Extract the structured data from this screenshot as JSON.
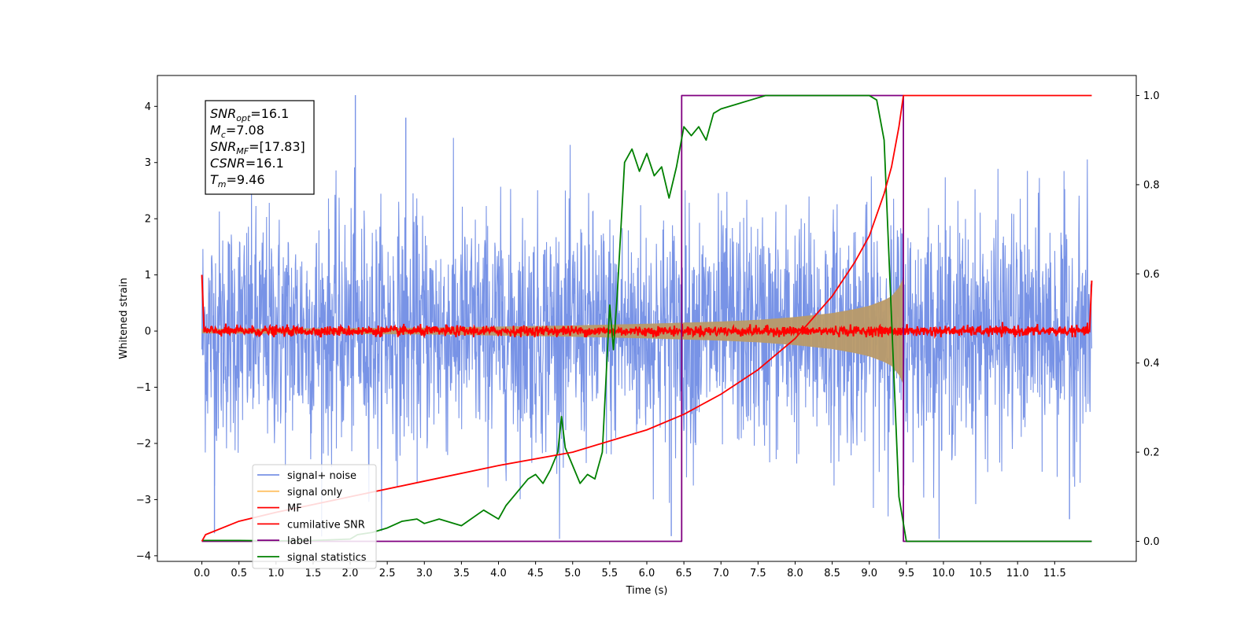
{
  "chart_data": {
    "type": "line",
    "xlabel": "Time (s)",
    "ylabel": "Whitened strain",
    "xlim": [
      -0.6,
      12.6
    ],
    "ylim": [
      -4.1,
      4.55
    ],
    "y2lim": [
      -0.045,
      1.045
    ],
    "grid": false,
    "legend_position": "lower-left",
    "x_ticks": [
      "0.0",
      "0.5",
      "1.0",
      "1.5",
      "2.0",
      "2.5",
      "3.0",
      "3.5",
      "4.0",
      "4.5",
      "5.0",
      "5.5",
      "6.0",
      "6.5",
      "7.0",
      "7.5",
      "8.0",
      "8.5",
      "9.0",
      "9.5",
      "10.0",
      "10.5",
      "11.0",
      "11.5"
    ],
    "y_ticks": [
      "−4",
      "−3",
      "−2",
      "−1",
      "0",
      "1",
      "2",
      "3",
      "4"
    ],
    "y2_ticks": [
      "0.0",
      "0.2",
      "0.4",
      "0.6",
      "0.8",
      "1.0"
    ],
    "annotation": {
      "lines": [
        {
          "base": "SNR",
          "sub": "opt",
          "rest": "=16.1"
        },
        {
          "base": "M",
          "sub": "c",
          "rest": "=7.08"
        },
        {
          "base": "SNR",
          "sub": "MF",
          "rest": "=[17.83]"
        },
        {
          "base": "CSNR",
          "sub": "",
          "rest": "=16.1"
        },
        {
          "base": "T",
          "sub": "m",
          "rest": "=9.46"
        }
      ]
    },
    "series": [
      {
        "name": "signal+ noise",
        "axis": "left",
        "color": "#7893e6",
        "model": "gaussian noise, std ≈ 1.05, range −3.7..4.2, over t = 0..12.0",
        "extremes": [
          [
            2.07,
            4.2
          ],
          [
            2.75,
            3.8
          ],
          [
            6.33,
            -3.65
          ],
          [
            0.17,
            -3.6
          ],
          [
            11.7,
            -3.35
          ]
        ]
      },
      {
        "name": "signal only",
        "axis": "left",
        "color": "#ffc266",
        "envelope": {
          "t": [
            0,
            3,
            5,
            6,
            7,
            7.5,
            8,
            8.5,
            8.8,
            9.0,
            9.2,
            9.3,
            9.4,
            9.46
          ],
          "amp": [
            0.04,
            0.06,
            0.1,
            0.13,
            0.17,
            0.2,
            0.25,
            0.32,
            0.39,
            0.45,
            0.55,
            0.62,
            0.78,
            0.95
          ]
        }
      },
      {
        "name": "MF",
        "axis": "left",
        "color": "#ff0000",
        "model": "noise ≈ 0 ± 0.06 over t = 0..12.0; start value 1.0, end value 0.9",
        "points": [
          [
            0,
            1.0
          ],
          [
            0.03,
            -0.02
          ],
          [
            11.97,
            0.0
          ],
          [
            12.0,
            0.9
          ]
        ]
      },
      {
        "name": "cumilative SNR",
        "axis": "right",
        "color": "#ff0000",
        "x": [
          0,
          0.05,
          0.5,
          1.0,
          2.0,
          3.0,
          4.0,
          5.0,
          5.5,
          6.0,
          6.5,
          7.0,
          7.5,
          8.0,
          8.5,
          8.8,
          9.0,
          9.2,
          9.3,
          9.4,
          9.46,
          12.0
        ],
        "y": [
          0,
          0.015,
          0.045,
          0.065,
          0.1,
          0.135,
          0.17,
          0.2,
          0.225,
          0.25,
          0.285,
          0.33,
          0.385,
          0.455,
          0.55,
          0.625,
          0.685,
          0.78,
          0.84,
          0.93,
          1.0,
          1.0
        ]
      },
      {
        "name": "label",
        "axis": "right",
        "color": "#800080",
        "x": [
          0,
          6.47,
          6.47,
          9.46,
          9.46,
          12.0
        ],
        "y": [
          0,
          0,
          1,
          1,
          0,
          0
        ]
      },
      {
        "name": "signal statistics",
        "axis": "right",
        "color": "#008000",
        "x": [
          0,
          0.5,
          1.0,
          1.5,
          2.0,
          2.1,
          2.3,
          2.5,
          2.7,
          2.9,
          3.0,
          3.2,
          3.5,
          3.8,
          3.9,
          4.0,
          4.1,
          4.2,
          4.3,
          4.4,
          4.5,
          4.6,
          4.7,
          4.8,
          4.85,
          4.9,
          5.0,
          5.1,
          5.2,
          5.3,
          5.4,
          5.5,
          5.55,
          5.6,
          5.7,
          5.8,
          5.9,
          6.0,
          6.1,
          6.2,
          6.3,
          6.4,
          6.5,
          6.6,
          6.7,
          6.8,
          6.9,
          7.0,
          7.2,
          7.4,
          7.6,
          7.8,
          8.0,
          8.5,
          9.0,
          9.1,
          9.2,
          9.3,
          9.4,
          9.5,
          12.0
        ],
        "y": [
          0.002,
          0.002,
          0.001,
          0.002,
          0.005,
          0.015,
          0.02,
          0.03,
          0.045,
          0.05,
          0.04,
          0.05,
          0.035,
          0.07,
          0.06,
          0.05,
          0.08,
          0.1,
          0.12,
          0.14,
          0.15,
          0.13,
          0.16,
          0.2,
          0.28,
          0.21,
          0.17,
          0.13,
          0.15,
          0.14,
          0.2,
          0.53,
          0.43,
          0.55,
          0.85,
          0.88,
          0.83,
          0.87,
          0.82,
          0.84,
          0.77,
          0.84,
          0.93,
          0.91,
          0.93,
          0.9,
          0.96,
          0.97,
          0.98,
          0.99,
          1.0,
          1.0,
          1.0,
          1.0,
          1.0,
          0.99,
          0.9,
          0.5,
          0.1,
          0.0,
          0.0
        ]
      }
    ]
  }
}
